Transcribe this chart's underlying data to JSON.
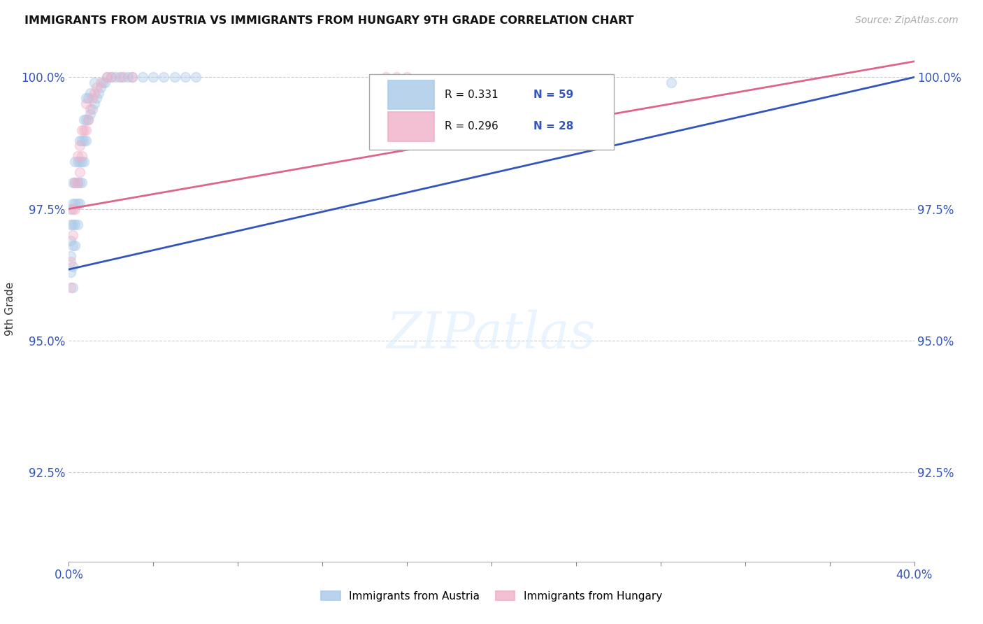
{
  "title": "IMMIGRANTS FROM AUSTRIA VS IMMIGRANTS FROM HUNGARY 9TH GRADE CORRELATION CHART",
  "source_text": "Source: ZipAtlas.com",
  "ylabel": "9th Grade",
  "xmin": 0.0,
  "xmax": 0.4,
  "ymin": 0.908,
  "ymax": 1.004,
  "yticks": [
    0.925,
    0.95,
    0.975,
    1.0
  ],
  "ytick_labels": [
    "92.5%",
    "95.0%",
    "97.5%",
    "100.0%"
  ],
  "xtick_positions": [
    0.0,
    0.04,
    0.08,
    0.12,
    0.16,
    0.2,
    0.24,
    0.28,
    0.32,
    0.36,
    0.4
  ],
  "legend_r1": "R = 0.331",
  "legend_n1": "N = 59",
  "legend_r2": "R = 0.296",
  "legend_n2": "N = 28",
  "color_austria": "#a8c8e8",
  "color_hungary": "#f0b0c8",
  "line_color_austria": "#3355bb",
  "line_color_hungary": "#dd6688",
  "background_color": "#ffffff",
  "grid_color": "#cccccc",
  "scatter_austria_x": [
    0.001,
    0.001,
    0.001,
    0.001,
    0.001,
    0.002,
    0.002,
    0.002,
    0.002,
    0.002,
    0.002,
    0.003,
    0.003,
    0.003,
    0.003,
    0.003,
    0.004,
    0.004,
    0.004,
    0.004,
    0.005,
    0.005,
    0.005,
    0.005,
    0.006,
    0.006,
    0.006,
    0.007,
    0.007,
    0.007,
    0.008,
    0.008,
    0.008,
    0.009,
    0.009,
    0.01,
    0.01,
    0.011,
    0.012,
    0.012,
    0.013,
    0.014,
    0.015,
    0.016,
    0.017,
    0.018,
    0.02,
    0.022,
    0.024,
    0.026,
    0.028,
    0.03,
    0.035,
    0.04,
    0.045,
    0.05,
    0.055,
    0.06,
    0.285
  ],
  "scatter_austria_y": [
    0.963,
    0.966,
    0.969,
    0.972,
    0.975,
    0.96,
    0.964,
    0.968,
    0.972,
    0.976,
    0.98,
    0.968,
    0.972,
    0.976,
    0.98,
    0.984,
    0.972,
    0.976,
    0.98,
    0.984,
    0.976,
    0.98,
    0.984,
    0.988,
    0.98,
    0.984,
    0.988,
    0.984,
    0.988,
    0.992,
    0.988,
    0.992,
    0.996,
    0.992,
    0.996,
    0.993,
    0.997,
    0.994,
    0.995,
    0.999,
    0.996,
    0.997,
    0.998,
    0.999,
    0.999,
    1.0,
    1.0,
    1.0,
    1.0,
    1.0,
    1.0,
    1.0,
    1.0,
    1.0,
    1.0,
    1.0,
    1.0,
    1.0,
    0.999
  ],
  "scatter_hungary_x": [
    0.001,
    0.001,
    0.002,
    0.002,
    0.003,
    0.003,
    0.004,
    0.004,
    0.005,
    0.005,
    0.006,
    0.006,
    0.007,
    0.008,
    0.008,
    0.009,
    0.01,
    0.011,
    0.012,
    0.013,
    0.015,
    0.018,
    0.02,
    0.025,
    0.03,
    0.15,
    0.155,
    0.16
  ],
  "scatter_hungary_y": [
    0.96,
    0.965,
    0.97,
    0.975,
    0.975,
    0.98,
    0.98,
    0.985,
    0.982,
    0.987,
    0.985,
    0.99,
    0.99,
    0.99,
    0.995,
    0.992,
    0.994,
    0.996,
    0.997,
    0.998,
    0.999,
    1.0,
    1.0,
    1.0,
    1.0,
    1.0,
    1.0,
    1.0
  ],
  "trendline_austria_x0": 0.0,
  "trendline_austria_x1": 0.4,
  "trendline_austria_y0": 0.9635,
  "trendline_austria_y1": 1.0,
  "trendline_hungary_x0": 0.0,
  "trendline_hungary_x1": 0.4,
  "trendline_hungary_y0": 0.975,
  "trendline_hungary_y1": 1.003,
  "marker_size": 100,
  "marker_alpha": 0.4,
  "marker_edge_alpha": 0.7,
  "marker_linewidth": 1.2
}
